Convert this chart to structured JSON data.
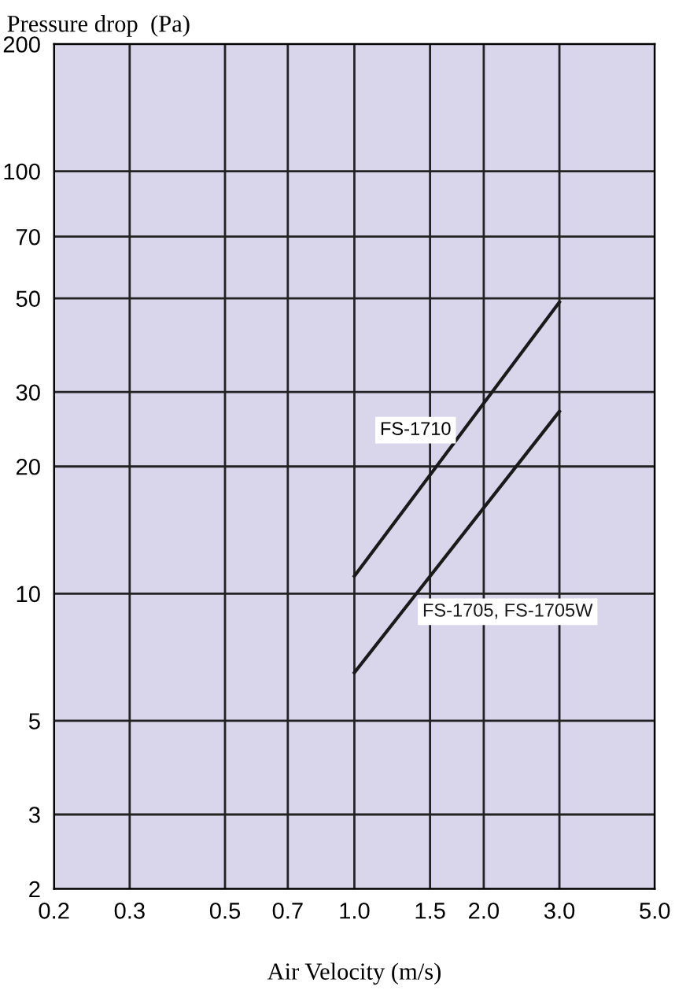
{
  "chart_data": {
    "type": "line",
    "xlabel": "Air Velocity (m/s)",
    "ylabel": "Pressure drop  (Pa)",
    "log": "xy",
    "grid": true,
    "legend": false,
    "marker": "none",
    "line_style": "solid",
    "xlim": [
      0.2,
      5.0
    ],
    "ylim": [
      2,
      200
    ],
    "xticks": [
      0.2,
      0.3,
      0.5,
      0.7,
      {
        "value": 1,
        "label": "1.0"
      },
      1.5,
      {
        "value": 2,
        "label": "2.0"
      },
      {
        "value": 3,
        "label": "3.0"
      },
      {
        "value": 5,
        "label": "5.0"
      }
    ],
    "yticks": [
      2,
      3,
      5,
      10,
      20,
      30,
      50,
      70,
      100,
      200
    ],
    "x": [
      1.0,
      3.0
    ],
    "series": [
      {
        "name": "FS-1710",
        "color": "#1a1a1a",
        "values": [
          11,
          49
        ]
      },
      {
        "name": "FS-1705, FS-1705W",
        "color": "#1a1a1a",
        "values": [
          6.5,
          27
        ]
      }
    ]
  }
}
